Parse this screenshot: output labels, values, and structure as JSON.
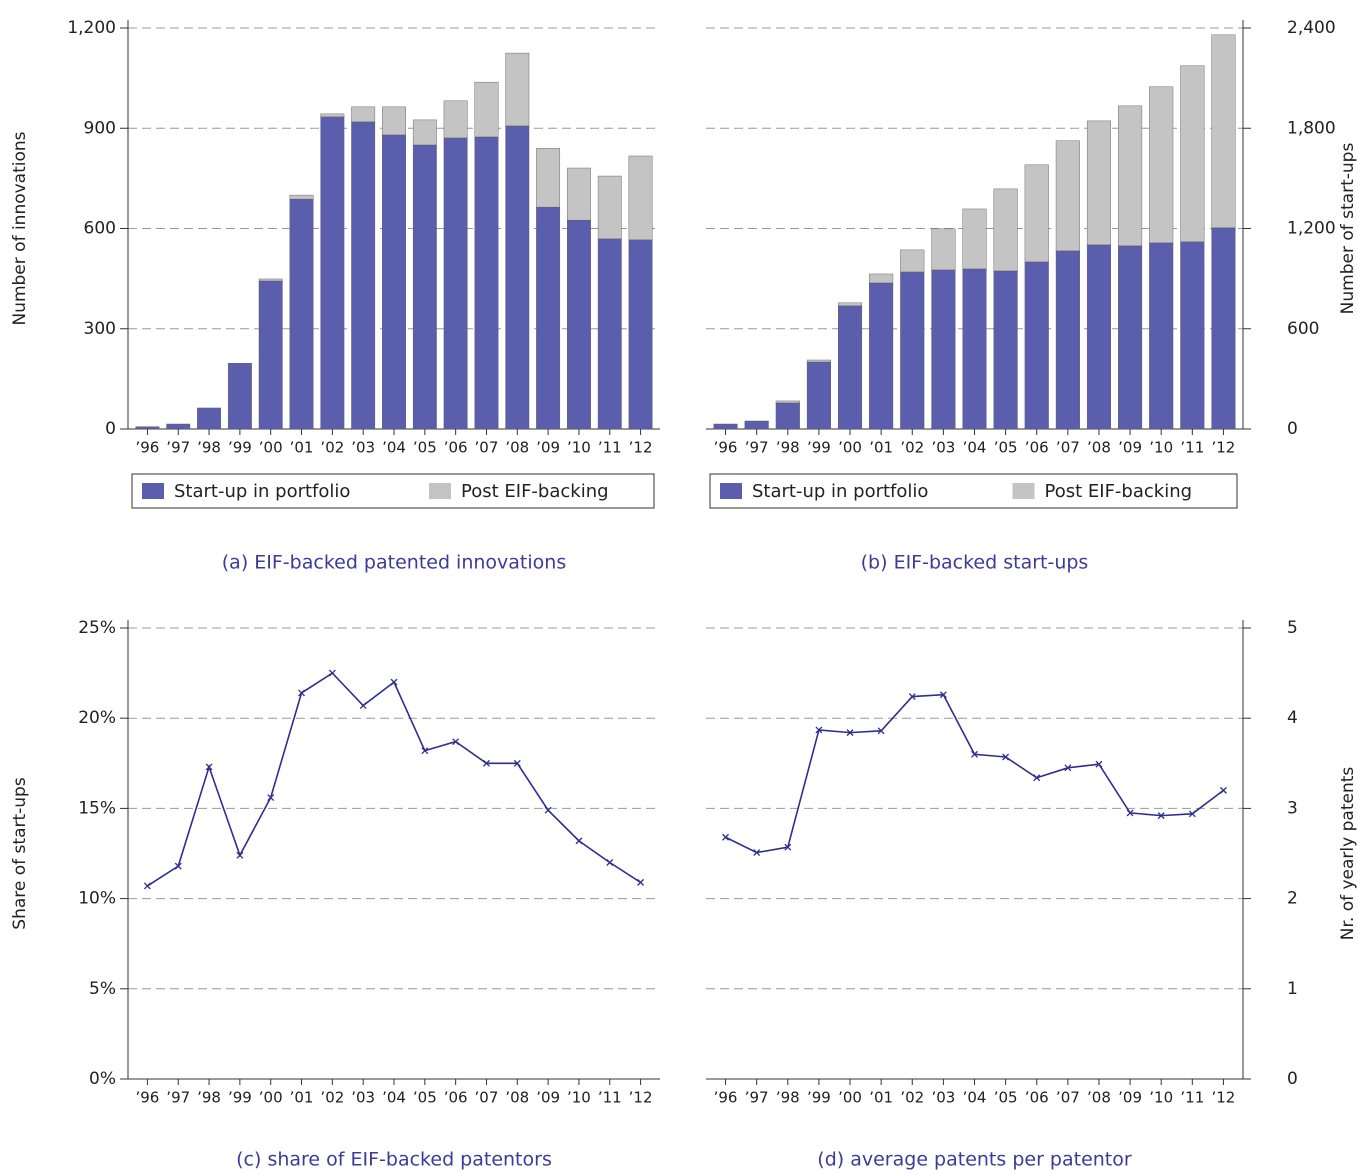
{
  "chart_data": [
    {
      "type": "bar",
      "stacked": true,
      "title": "(a) EIF-backed patented innovations",
      "y_label": "Number of innovations",
      "y_axis_side": "left",
      "grid": true,
      "legend": "bottom",
      "categories": [
        "’96",
        "’97",
        "’98",
        "’99",
        "’00",
        "’01",
        "’02",
        "’03",
        "’04",
        "’05",
        "’06",
        "’07",
        "’08",
        "’09",
        "’10",
        "’11",
        "’12"
      ],
      "series": [
        {
          "name": "Start-up in portfolio",
          "color": "#5b5ead",
          "values": [
            7,
            15,
            63,
            197,
            443,
            688,
            934,
            919,
            880,
            850,
            871,
            874,
            907,
            664,
            625,
            569,
            566
          ]
        },
        {
          "name": "Post EIF-backing",
          "color": "#c4c4c4",
          "values": [
            0,
            0,
            0,
            0,
            6,
            12,
            9,
            45,
            84,
            75,
            111,
            164,
            218,
            176,
            156,
            188,
            251
          ]
        }
      ],
      "ylim": [
        0,
        1200
      ],
      "yticks": [
        0,
        300,
        600,
        900,
        {
          "value": 1200,
          "label": "1,200"
        }
      ]
    },
    {
      "type": "bar",
      "stacked": true,
      "title": "(b) EIF-backed start-ups",
      "y_label": "Number of start-ups",
      "y_axis_side": "right",
      "grid": true,
      "legend": "bottom",
      "categories": [
        "’96",
        "’97",
        "’98",
        "’99",
        "’00",
        "’01",
        "’02",
        "’03",
        "’04",
        "’05",
        "’06",
        "’07",
        "’08",
        "’09",
        "’10",
        "’11",
        "’12"
      ],
      "series": [
        {
          "name": "Start-up in portfolio",
          "color": "#5b5ead",
          "values": [
            30,
            48,
            156,
            401,
            737,
            874,
            940,
            952,
            958,
            946,
            1000,
            1066,
            1102,
            1096,
            1114,
            1120,
            1204
          ]
        },
        {
          "name": "Post EIF-backing",
          "color": "#c4c4c4",
          "values": [
            0,
            0,
            12,
            12,
            18,
            54,
            132,
            246,
            359,
            491,
            581,
            659,
            742,
            838,
            934,
            1054,
            1155
          ]
        }
      ],
      "ylim": [
        0,
        2400
      ],
      "yticks": [
        0,
        600,
        {
          "value": 1200,
          "label": "1,200"
        },
        {
          "value": 1800,
          "label": "1,800"
        },
        {
          "value": 2400,
          "label": "2,400"
        }
      ]
    },
    {
      "type": "line",
      "title": "(c) share of EIF-backed patentors",
      "y_label": "Share of start-ups",
      "y_axis_side": "left",
      "grid": true,
      "marker": "x",
      "categories": [
        "’96",
        "’97",
        "’98",
        "’99",
        "’00",
        "’01",
        "’02",
        "’03",
        "’04",
        "’05",
        "’06",
        "’07",
        "’08",
        "’09",
        "’10",
        "’11",
        "’12"
      ],
      "series": [
        {
          "color": "#2e2e8e",
          "values": [
            10.7,
            11.8,
            17.3,
            12.4,
            15.6,
            21.4,
            22.5,
            20.7,
            22.0,
            18.2,
            18.7,
            17.5,
            17.5,
            14.9,
            13.2,
            12.0,
            10.9
          ]
        }
      ],
      "ylim": [
        0,
        25
      ],
      "yticks": [
        {
          "value": 0,
          "label": "0%"
        },
        {
          "value": 5,
          "label": "5%"
        },
        {
          "value": 10,
          "label": "10%"
        },
        {
          "value": 15,
          "label": "15%"
        },
        {
          "value": 20,
          "label": "20%"
        },
        {
          "value": 25,
          "label": "25%"
        }
      ]
    },
    {
      "type": "line",
      "title": "(d) average patents per patentor",
      "y_label": "Nr. of yearly patents",
      "y_axis_side": "right",
      "grid": true,
      "marker": "x",
      "categories": [
        "’96",
        "’97",
        "’98",
        "’99",
        "’00",
        "’01",
        "’02",
        "’03",
        "’04",
        "’05",
        "’06",
        "’07",
        "’08",
        "’09",
        "’10",
        "’11",
        "’12"
      ],
      "series": [
        {
          "color": "#2e2e8e",
          "values": [
            2.68,
            2.51,
            2.57,
            3.87,
            3.84,
            3.86,
            4.24,
            4.26,
            3.6,
            3.57,
            3.34,
            3.45,
            3.49,
            2.95,
            2.92,
            2.94,
            3.2
          ]
        }
      ],
      "ylim": [
        0,
        5
      ],
      "yticks": [
        0,
        1,
        2,
        3,
        4,
        5
      ]
    }
  ]
}
